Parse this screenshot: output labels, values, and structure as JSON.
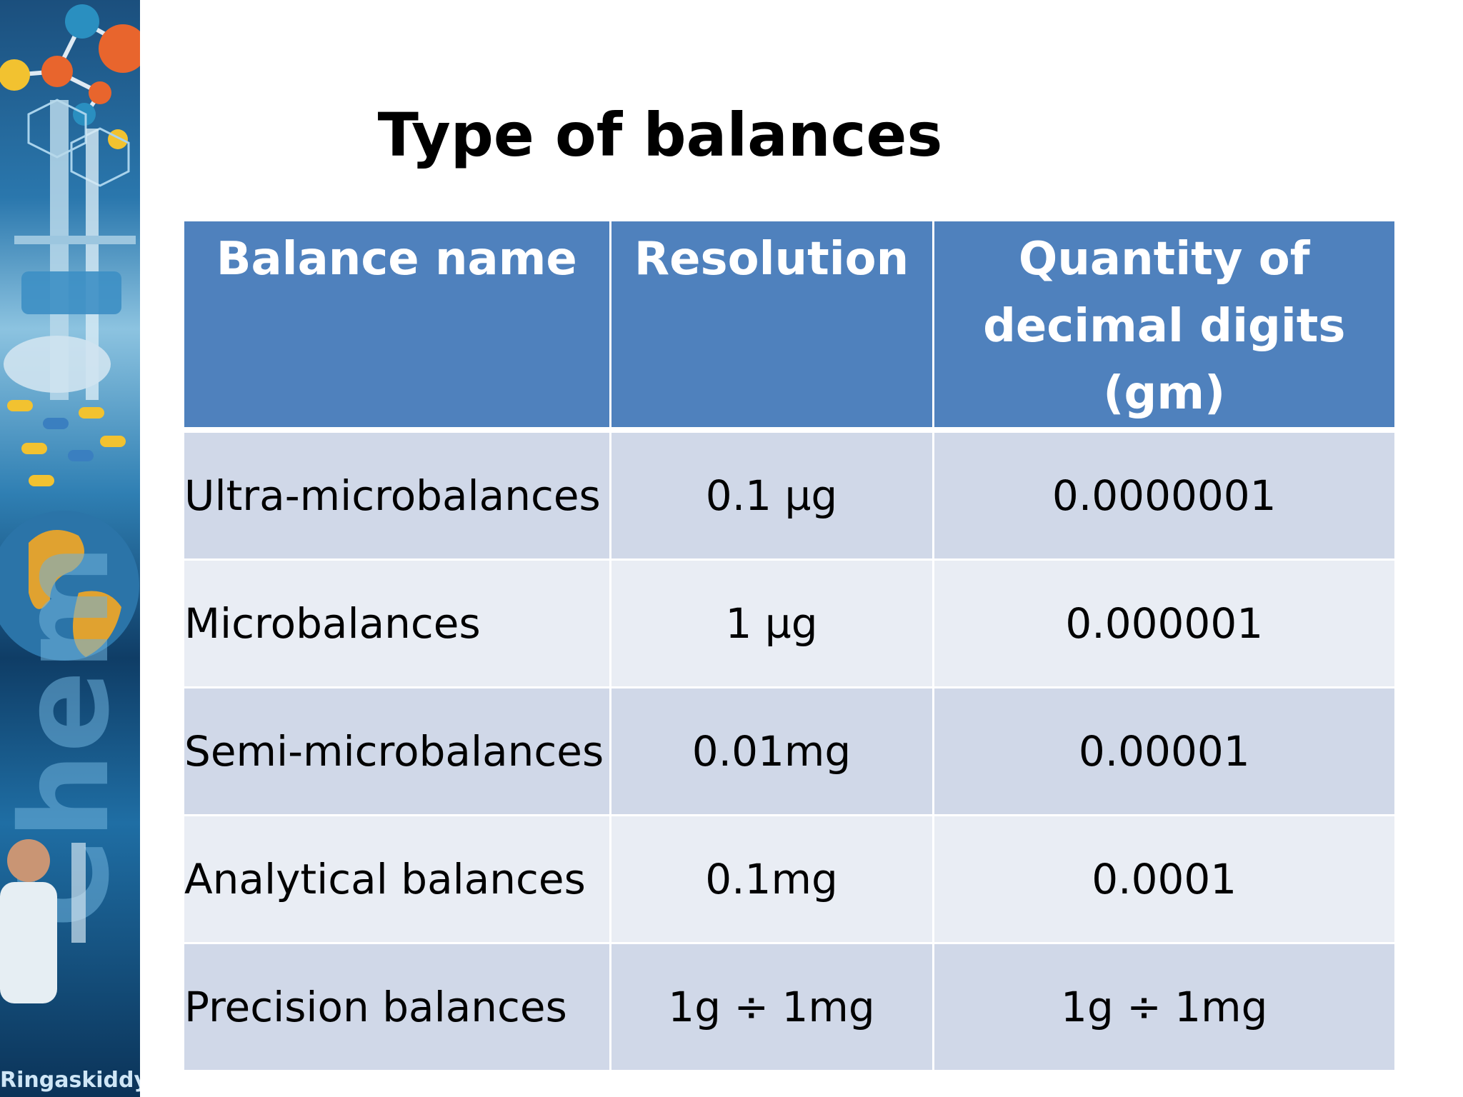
{
  "slide": {
    "title": "Type of balances",
    "brand_text": "Ringaskiddy"
  },
  "table": {
    "headers": [
      "Balance name",
      "Resolution",
      "Quantity of decimal digits (gm)"
    ],
    "rows": [
      [
        "Ultra-microbalances",
        "0.1 µg",
        "0.0000001"
      ],
      [
        "Microbalances",
        "1 µg",
        "0.000001"
      ],
      [
        "Semi-microbalances",
        "0.01mg",
        "0.00001"
      ],
      [
        "Analytical balances",
        "0.1mg",
        "0.0001"
      ],
      [
        "Precision balances",
        "1g ÷ 1mg",
        "1g ÷ 1mg"
      ]
    ]
  },
  "colors": {
    "header_bg": "#4f81bd",
    "row_odd_bg": "#d0d8e8",
    "row_even_bg": "#e9edf4"
  }
}
